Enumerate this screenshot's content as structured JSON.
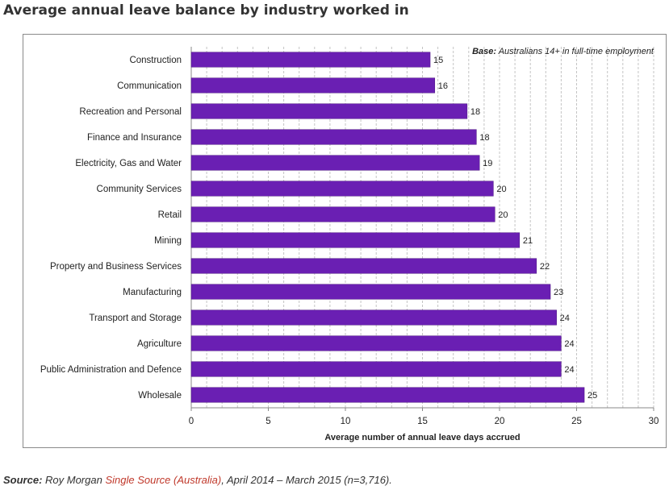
{
  "page": {
    "title": "Average annual leave balance by industry worked in",
    "source_label": "Source:",
    "source_pre": " Roy Morgan ",
    "source_link": "Single Source (Australia)",
    "source_post": ", April 2014 – March 2015 (n=3,716)."
  },
  "chart_data": {
    "type": "bar",
    "orientation": "horizontal",
    "categories": [
      "Construction",
      "Communication",
      "Recreation and Personal",
      "Finance and Insurance",
      "Electricity, Gas and Water",
      "Community Services",
      "Retail",
      "Mining",
      "Property and Business Services",
      "Manufacturing",
      "Transport and Storage",
      "Agriculture",
      "Public Administration and Defence",
      "Wholesale"
    ],
    "values": [
      15.5,
      15.8,
      17.9,
      18.5,
      18.7,
      19.6,
      19.7,
      21.3,
      22.4,
      23.3,
      23.7,
      24,
      24,
      25.5
    ],
    "data_labels": [
      "15",
      "16",
      "18",
      "18",
      "19",
      "20",
      "20",
      "21",
      "22",
      "23",
      "24",
      "24",
      "24",
      "25"
    ],
    "xlabel": "Average number of annual leave days accrued",
    "ylabel": "",
    "xlim": [
      0,
      30
    ],
    "xticks": [
      0,
      5,
      10,
      15,
      20,
      25,
      30
    ],
    "annotation_label": "Base:",
    "annotation_text": " Australians 14+ in full-time employment",
    "grid": "vertical dashed minor gridlines",
    "bar_color": "#6a1fb3",
    "legend": "none"
  }
}
